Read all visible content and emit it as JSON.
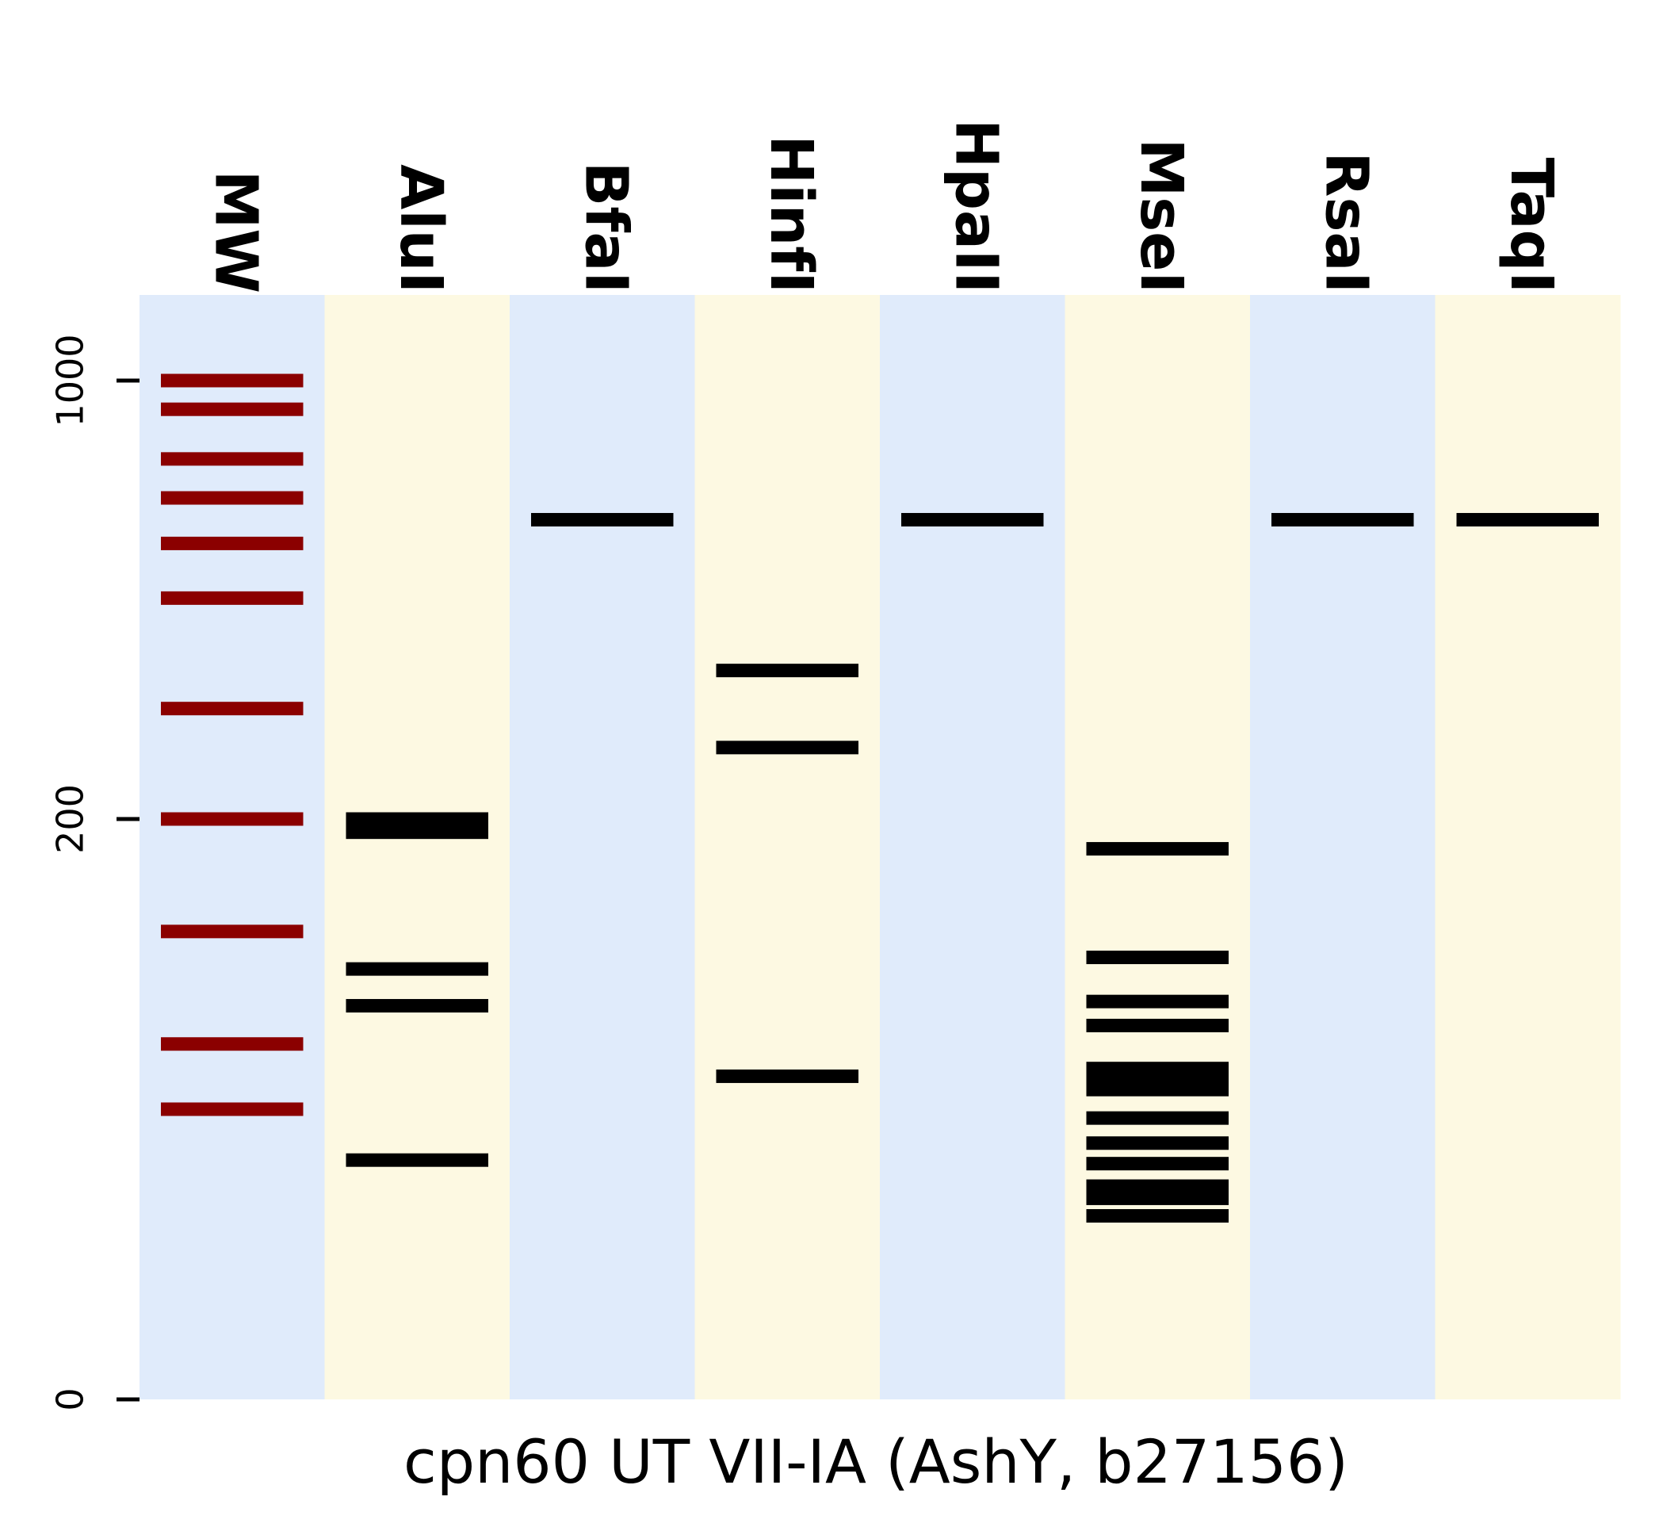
{
  "chart_data": {
    "type": "gel",
    "xlabel": "cpn60 UT VII-IA (AshY, b27156)",
    "y_ticks": [
      0,
      200,
      1000
    ],
    "ylim": [
      0,
      1300
    ],
    "colors": {
      "lane_a": "#e0ebfb",
      "lane_b": "#fdf9e2",
      "ladder_band": "#8b0000",
      "band": "#000000",
      "axis": "#000000"
    },
    "lanes": [
      {
        "name": "MW",
        "bands": [
          1000,
          900,
          750,
          650,
          550,
          450,
          300,
          200,
          130,
          75,
          50
        ]
      },
      {
        "name": "AluI",
        "bands": [
          200,
          191,
          110,
          92,
          34
        ]
      },
      {
        "name": "BfaI",
        "bands": [
          600
        ]
      },
      {
        "name": "HinfI",
        "bands": [
          345,
          260,
          62
        ]
      },
      {
        "name": "HpaII",
        "bands": [
          600
        ]
      },
      {
        "name": "MseI",
        "bands": [
          180,
          116,
          94,
          83,
          65,
          61,
          57,
          47,
          39,
          33,
          27,
          24,
          20
        ]
      },
      {
        "name": "RsaI",
        "bands": [
          600
        ]
      },
      {
        "name": "TaqI",
        "bands": [
          600
        ]
      }
    ]
  }
}
